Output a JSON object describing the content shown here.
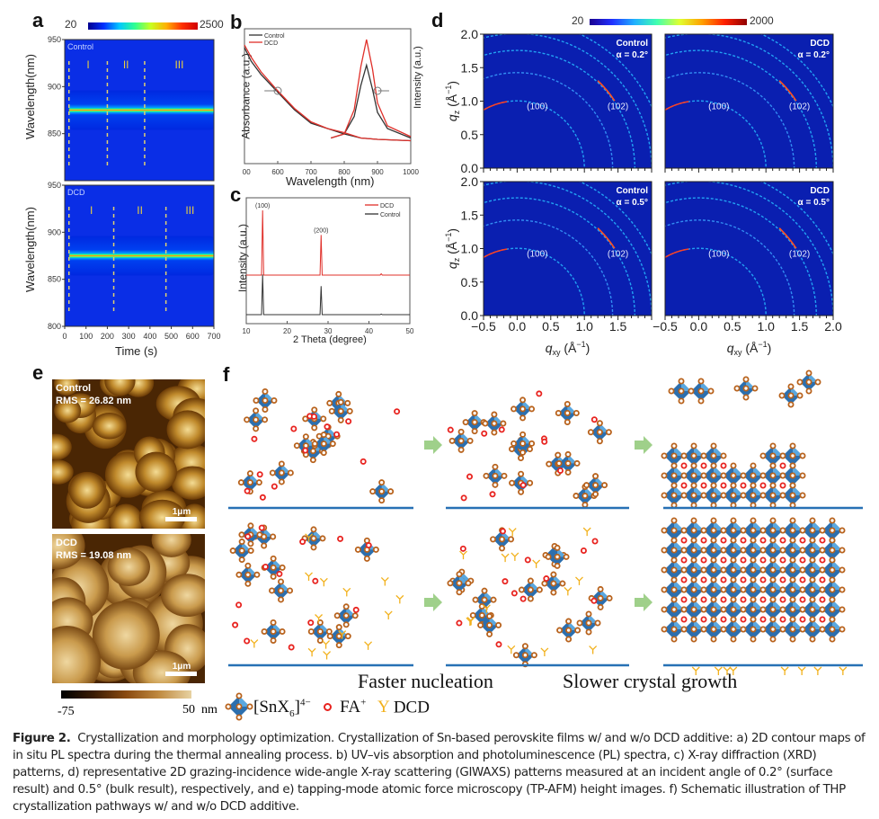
{
  "figure": {
    "panel_labels": [
      "a",
      "b",
      "c",
      "d",
      "e",
      "f"
    ],
    "caption_title": "Figure 2.",
    "caption_body": "Crystallization and morphology optimization. Crystallization of Sn-based perovskite films w/ and w/o DCD additive: a) 2D contour maps of in situ PL spectra during the thermal annealing process. b) UV–vis absorption and photoluminescence (PL) spectra, c) X-ray diffraction (XRD) patterns, d) representative 2D grazing-incidence wide-angle X-ray scattering (GIWAXS) patterns measured at an incident angle of 0.2° (surface result) and 0.5° (bulk result), respectively, and e) tapping-mode atomic force microscopy (TP-AFM) height images. f) Schematic illustration of THP crystallization pathways w/ and w/o DCD additive."
  },
  "chart_data": [
    {
      "panel": "a",
      "type": "heatmap",
      "colorbar": {
        "min": 20,
        "max": 2500,
        "min_label": "20",
        "max_label": "2500"
      },
      "xlabel": "Time (s)",
      "ylabel": "Wavelength(nm)",
      "xlim": [
        0,
        700
      ],
      "xticks": [
        "0",
        "100",
        "200",
        "300",
        "400",
        "500",
        "600",
        "700"
      ],
      "subplots": [
        {
          "name": "Control",
          "ylim": [
            800,
            950
          ],
          "yticks": [
            "950",
            "900",
            "850"
          ],
          "peak_nm": 875,
          "onset_s": 20,
          "stage_boundaries_s": [
            20,
            200,
            375
          ],
          "stages": [
            "I",
            "II",
            "III"
          ]
        },
        {
          "name": "DCD",
          "ylim": [
            800,
            950
          ],
          "yticks": [
            "950",
            "900",
            "850",
            "800"
          ],
          "peak_nm": 875,
          "onset_s": 20,
          "stage_boundaries_s": [
            20,
            230,
            475
          ],
          "stages": [
            "I",
            "II",
            "III"
          ]
        }
      ]
    },
    {
      "panel": "b",
      "type": "line",
      "xlabel": "Wavelength (nm)",
      "ylabel_left": "Absorbance (a.u.)",
      "ylabel_right": "Intensity (a.u.)",
      "xlim": [
        500,
        1000
      ],
      "xticks": [
        "500",
        "600",
        "700",
        "800",
        "900",
        "1000"
      ],
      "legend": "top-left",
      "series": [
        {
          "name": "Control",
          "color": "#333333",
          "absorbance": [
            [
              500,
              0.86
            ],
            [
              520,
              0.76
            ],
            [
              550,
              0.66
            ],
            [
              600,
              0.53
            ],
            [
              650,
              0.4
            ],
            [
              700,
              0.3
            ],
            [
              750,
              0.26
            ],
            [
              800,
              0.22
            ],
            [
              850,
              0.19
            ],
            [
              900,
              0.18
            ],
            [
              1000,
              0.17
            ]
          ],
          "pl": [
            [
              760,
              0.19
            ],
            [
              800,
              0.22
            ],
            [
              830,
              0.35
            ],
            [
              850,
              0.58
            ],
            [
              867,
              0.73
            ],
            [
              885,
              0.55
            ],
            [
              900,
              0.38
            ],
            [
              930,
              0.26
            ],
            [
              1000,
              0.19
            ]
          ]
        },
        {
          "name": "DCD",
          "color": "#e0302a",
          "absorbance": [
            [
              500,
              0.88
            ],
            [
              520,
              0.79
            ],
            [
              550,
              0.68
            ],
            [
              600,
              0.54
            ],
            [
              650,
              0.41
            ],
            [
              700,
              0.31
            ],
            [
              750,
              0.26
            ],
            [
              800,
              0.23
            ],
            [
              850,
              0.19
            ],
            [
              900,
              0.18
            ],
            [
              1000,
              0.17
            ]
          ],
          "pl": [
            [
              760,
              0.19
            ],
            [
              800,
              0.22
            ],
            [
              830,
              0.4
            ],
            [
              850,
              0.72
            ],
            [
              867,
              0.92
            ],
            [
              885,
              0.7
            ],
            [
              900,
              0.45
            ],
            [
              930,
              0.28
            ],
            [
              1000,
              0.2
            ]
          ]
        }
      ]
    },
    {
      "panel": "c",
      "type": "line",
      "xlabel": "2 Theta (degree)",
      "ylabel": "Intensity (a.u.)",
      "xlim": [
        10,
        50
      ],
      "xticks": [
        "10",
        "20",
        "30",
        "40",
        "50"
      ],
      "legend": "top-right",
      "peak_labels": [
        {
          "text": "(100)",
          "x": 14.0
        },
        {
          "text": "(200)",
          "x": 28.3
        }
      ],
      "series": [
        {
          "name": "DCD",
          "color": "#e0302a",
          "peaks": [
            {
              "x": 14.0,
              "h": 1.0
            },
            {
              "x": 28.3,
              "h": 0.62
            },
            {
              "x": 43.0,
              "h": 0.02
            }
          ]
        },
        {
          "name": "Control",
          "color": "#333333",
          "peaks": [
            {
              "x": 14.0,
              "h": 0.62
            },
            {
              "x": 28.3,
              "h": 0.44
            },
            {
              "x": 43.0,
              "h": 0.01
            }
          ]
        }
      ]
    },
    {
      "panel": "d",
      "type": "heatmap",
      "colorbar": {
        "min": 20,
        "max": 2000,
        "min_label": "20",
        "max_label": "2000"
      },
      "xlabel": "q_xy (Å^-1)",
      "ylabel": "q_z (Å^-1)",
      "xlim": [
        -0.5,
        2.0
      ],
      "ylim": [
        0.0,
        2.0
      ],
      "xticks": [
        "−0.5",
        "0.0",
        "0.5",
        "1.0",
        "1.5",
        "2.0"
      ],
      "yticks": [
        "2.0",
        "1.5",
        "1.0",
        "0.5",
        "0.0"
      ],
      "ring_labels": [
        {
          "text": "(100)",
          "q": 1.0
        },
        {
          "text": "(102)",
          "q": 1.75
        }
      ],
      "ring_radii_q": [
        1.0,
        1.42,
        1.75,
        2.0,
        2.2
      ],
      "subplots": [
        {
          "sample": "Control",
          "angle": "α = 0.2°"
        },
        {
          "sample": "DCD",
          "angle": "α = 0.2°"
        },
        {
          "sample": "Control",
          "angle": "α = 0.5°"
        },
        {
          "sample": "DCD",
          "angle": "α = 0.5°"
        }
      ]
    },
    {
      "panel": "e",
      "type": "heatmap",
      "colorbar": {
        "min": -75,
        "max": 50,
        "min_label": "-75",
        "max_label": "50  nm"
      },
      "scale_bar": "1μm",
      "subplots": [
        {
          "sample": "Control",
          "rms": "RMS = 26.82 nm"
        },
        {
          "sample": "DCD",
          "rms": "RMS = 19.08 nm"
        }
      ]
    }
  ],
  "schematic": {
    "stage_captions": [
      "Faster nucleation",
      "Slower crystal growth"
    ],
    "legend": {
      "octahedron": "[SnX",
      "oct_sub": "6",
      "oct_sup": "]",
      "oct_charge": "4−",
      "fa": "FA",
      "fa_sup": "+",
      "dcd": "DCD"
    },
    "colors": {
      "octa_light": "#5aa8e0",
      "octa_dark": "#2c6fae",
      "halide": "#b8621c",
      "fa": "#e8231f",
      "dcd": "#f2b11c",
      "substrate": "#2771b5",
      "arrow": "#9fd08a"
    }
  }
}
